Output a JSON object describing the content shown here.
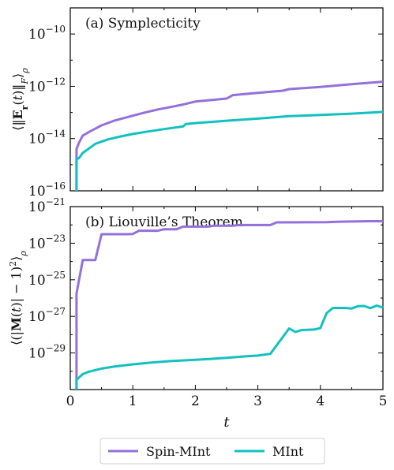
{
  "chart_data": [
    {
      "type": "line",
      "title": "(a) Symplecticity",
      "xlabel": "",
      "ylabel": "⟨‖E_r(t)‖_F⟩_ρ",
      "yscale": "log",
      "xlim": [
        0,
        5
      ],
      "ylim": [
        1e-16,
        1e-09
      ],
      "x_ticks": [
        "0",
        "1",
        "2",
        "3",
        "4",
        "5"
      ],
      "y_ticks": [
        {
          "base": "10",
          "exp": "−10",
          "value": 1e-10
        },
        {
          "base": "10",
          "exp": "−12",
          "value": 1e-12
        },
        {
          "base": "10",
          "exp": "−14",
          "value": 1e-14
        },
        {
          "base": "10",
          "exp": "−16",
          "value": 1e-16
        }
      ],
      "grid": false,
      "series": [
        {
          "name": "Spin-MInt",
          "color": "#9370db",
          "points": [
            [
              0.1,
              1e-16
            ],
            [
              0.1,
              4e-15
            ],
            [
              0.14,
              7e-15
            ],
            [
              0.2,
              1.3e-14
            ],
            [
              0.3,
              1.8e-14
            ],
            [
              0.5,
              3.2e-14
            ],
            [
              0.7,
              4.8e-14
            ],
            [
              0.9,
              6.5e-14
            ],
            [
              1.0,
              7.5e-14
            ],
            [
              1.2,
              1e-13
            ],
            [
              1.4,
              1.3e-13
            ],
            [
              1.6,
              1.6e-13
            ],
            [
              1.8,
              2e-13
            ],
            [
              2.0,
              2.6e-13
            ],
            [
              2.2,
              2.9e-13
            ],
            [
              2.5,
              3.4e-13
            ],
            [
              2.6,
              4.6e-13
            ],
            [
              3.0,
              5.6e-13
            ],
            [
              3.4,
              6.8e-13
            ],
            [
              3.5,
              7.8e-13
            ],
            [
              4.0,
              9.5e-13
            ],
            [
              4.5,
              1.2e-12
            ],
            [
              5.0,
              1.5e-12
            ]
          ]
        },
        {
          "name": "MInt",
          "color": "#12c1bf",
          "points": [
            [
              0.1,
              1e-16
            ],
            [
              0.1,
              1.6e-15
            ],
            [
              0.14,
              1.8e-15
            ],
            [
              0.2,
              2.8e-15
            ],
            [
              0.3,
              4.2e-15
            ],
            [
              0.4,
              6.3e-15
            ],
            [
              0.6,
              9.3e-15
            ],
            [
              0.8,
              1.2e-14
            ],
            [
              1.0,
              1.5e-14
            ],
            [
              1.2,
              1.8e-14
            ],
            [
              1.5,
              2.3e-14
            ],
            [
              1.8,
              2.9e-14
            ],
            [
              1.85,
              3.6e-14
            ],
            [
              2.0,
              3.9e-14
            ],
            [
              2.5,
              4.8e-14
            ],
            [
              3.0,
              5.8e-14
            ],
            [
              3.5,
              7.2e-14
            ],
            [
              4.0,
              8e-14
            ],
            [
              4.5,
              9e-14
            ],
            [
              5.0,
              1.05e-13
            ]
          ]
        }
      ]
    },
    {
      "type": "line",
      "title": "(b) Liouville’s Theorem",
      "xlabel": "t",
      "ylabel": "⟨(|M(t)| − 1)²⟩_ρ",
      "yscale": "log",
      "xlim": [
        0,
        5
      ],
      "ylim": [
        1e-31,
        1e-21
      ],
      "x_ticks": [
        "0",
        "1",
        "2",
        "3",
        "4",
        "5"
      ],
      "y_ticks": [
        {
          "base": "10",
          "exp": "−21",
          "value": 1e-21
        },
        {
          "base": "10",
          "exp": "−23",
          "value": 1e-23
        },
        {
          "base": "10",
          "exp": "−25",
          "value": 1e-25
        },
        {
          "base": "10",
          "exp": "−27",
          "value": 1e-27
        },
        {
          "base": "10",
          "exp": "−29",
          "value": 1e-29
        }
      ],
      "grid": false,
      "series": [
        {
          "name": "Spin-MInt",
          "color": "#9370db",
          "points": [
            [
              0.1,
              1e-31
            ],
            [
              0.1,
              1.8e-26
            ],
            [
              0.2,
              1.2e-24
            ],
            [
              0.4,
              1.2e-24
            ],
            [
              0.5,
              3.1e-23
            ],
            [
              0.9,
              3.1e-23
            ],
            [
              1.0,
              3.2e-23
            ],
            [
              1.1,
              4.8e-23
            ],
            [
              1.4,
              4.8e-23
            ],
            [
              1.5,
              5.8e-23
            ],
            [
              1.7,
              5.8e-23
            ],
            [
              1.8,
              8e-23
            ],
            [
              2.2,
              8e-23
            ],
            [
              2.3,
              9e-23
            ],
            [
              2.6,
              9e-23
            ],
            [
              2.7,
              9.8e-23
            ],
            [
              3.2,
              9.8e-23
            ],
            [
              3.3,
              1.38e-22
            ],
            [
              4.1,
              1.4e-22
            ],
            [
              4.3,
              1.5e-22
            ],
            [
              4.8,
              1.6e-22
            ],
            [
              5.0,
              1.6e-22
            ]
          ]
        },
        {
          "name": "MInt",
          "color": "#12c1bf",
          "points": [
            [
              0.1,
              1e-31
            ],
            [
              0.1,
              3.4e-31
            ],
            [
              0.2,
              7e-31
            ],
            [
              0.3,
              9.5e-31
            ],
            [
              0.5,
              1.4e-30
            ],
            [
              0.7,
              1.8e-30
            ],
            [
              1.0,
              2.4e-30
            ],
            [
              1.3,
              3e-30
            ],
            [
              1.6,
              3.6e-30
            ],
            [
              2.0,
              4.2e-30
            ],
            [
              2.2,
              4.6e-30
            ],
            [
              2.5,
              5.4e-30
            ],
            [
              2.8,
              6.5e-30
            ],
            [
              3.0,
              7.2e-30
            ],
            [
              3.2,
              9e-30
            ],
            [
              3.5,
              2.2e-28
            ],
            [
              3.6,
              1.4e-28
            ],
            [
              3.7,
              1.8e-28
            ],
            [
              3.9,
              1.9e-28
            ],
            [
              4.0,
              2.3e-28
            ],
            [
              4.1,
              1.5e-27
            ],
            [
              4.2,
              2.9e-27
            ],
            [
              4.4,
              2.9e-27
            ],
            [
              4.5,
              2.7e-27
            ],
            [
              4.6,
              3.6e-27
            ],
            [
              4.7,
              3.7e-27
            ],
            [
              4.8,
              2.8e-27
            ],
            [
              4.9,
              3.9e-27
            ],
            [
              5.0,
              3e-27
            ]
          ]
        }
      ]
    }
  ],
  "legend": {
    "placement": "bottom-center",
    "items": [
      {
        "label": "Spin-MInt",
        "color": "#9370db"
      },
      {
        "label": "MInt",
        "color": "#12c1bf"
      }
    ]
  }
}
